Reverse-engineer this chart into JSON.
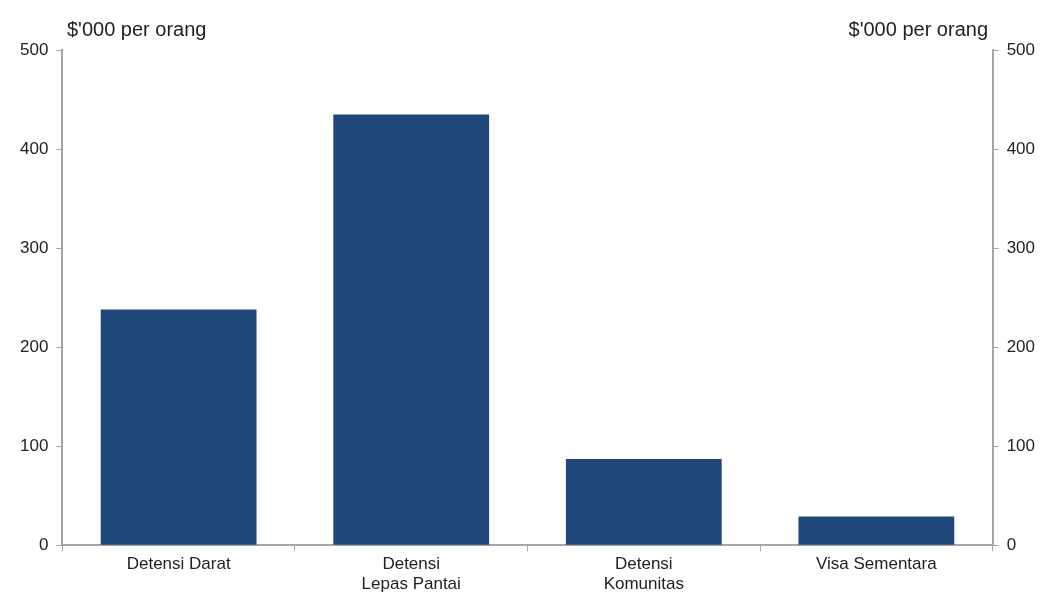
{
  "chart_data": {
    "type": "bar",
    "ylabel": "$'000 per orang",
    "y2label": "$'000 per orang",
    "categories": [
      "Detensi Darat",
      "Detensi\nLepas Pantai",
      "Detensi\nKomunitas",
      "Visa Sementara"
    ],
    "values": [
      238,
      435,
      87,
      29
    ],
    "color": "#1f477a",
    "ylim": [
      0,
      500
    ],
    "yticks": [
      0,
      100,
      200,
      300,
      400,
      500
    ],
    "y2lim": [
      0,
      500
    ],
    "y2ticks": [
      0,
      100,
      200,
      300,
      400,
      500
    ],
    "grid": false
  }
}
